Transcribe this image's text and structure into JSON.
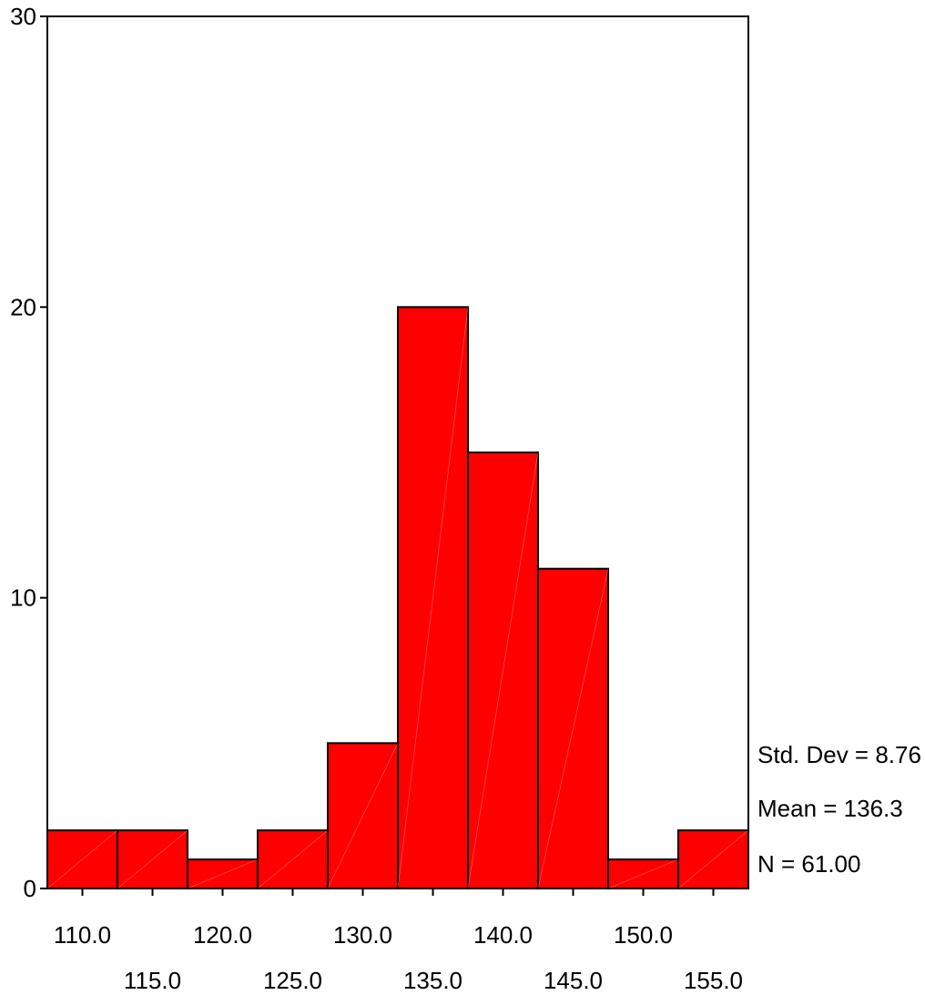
{
  "chart_data": {
    "type": "bar",
    "bin_centers": [
      110.0,
      115.0,
      120.0,
      125.0,
      130.0,
      135.0,
      140.0,
      145.0,
      150.0,
      155.0
    ],
    "bin_width": 5.0,
    "values": [
      2,
      2,
      1,
      2,
      5,
      20,
      15,
      11,
      1,
      2
    ],
    "xlim": [
      107.5,
      157.5
    ],
    "ylim": [
      0,
      30
    ],
    "y_ticks": [
      0,
      10,
      20,
      30
    ],
    "x_tick_labels_row1": [
      "110.0",
      "120.0",
      "130.0",
      "140.0",
      "150.0"
    ],
    "x_tick_labels_row2": [
      "115.0",
      "125.0",
      "135.0",
      "145.0",
      "155.0"
    ],
    "bar_color": "#ff0000",
    "stats": {
      "std_dev": "Std. Dev = 8.76",
      "mean": "Mean = 136.3",
      "n": "N = 61.00"
    },
    "grid": false,
    "title": "",
    "xlabel": "",
    "ylabel": ""
  }
}
